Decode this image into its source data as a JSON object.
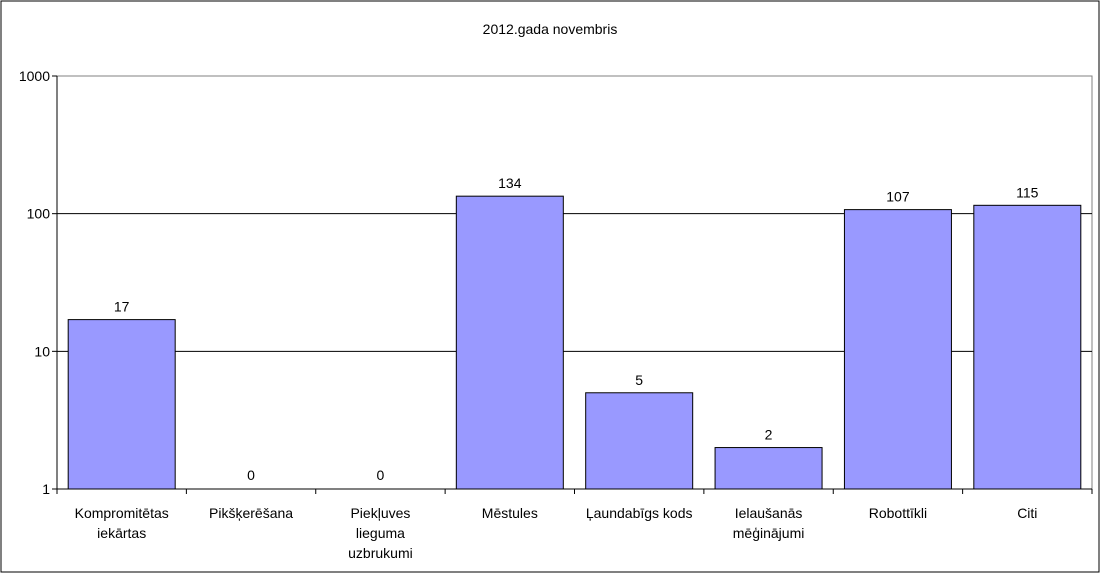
{
  "chart_data": {
    "type": "bar",
    "title": "2012.gada novembris",
    "xlabel": "",
    "ylabel": "",
    "y_scale": "log",
    "ylim": [
      1,
      1000
    ],
    "y_ticks": [
      1,
      10,
      100,
      1000
    ],
    "y_tick_labels": [
      "1",
      "10",
      "100",
      "1000"
    ],
    "grid": true,
    "legend": "none",
    "categories": [
      [
        "Kompromitētas",
        "iekārtas"
      ],
      [
        "Pikšķerēšana"
      ],
      [
        "Piekļuves",
        "lieguma",
        "uzbrukumi"
      ],
      [
        "Mēstules"
      ],
      [
        "Ļaundabīgs kods"
      ],
      [
        "Ielaušanās",
        "mēģinājumi"
      ],
      [
        "Robottīkli"
      ],
      [
        "Citi"
      ]
    ],
    "values": [
      17,
      0,
      0,
      134,
      5,
      2,
      107,
      115
    ],
    "data_labels": [
      "17",
      "0",
      "0",
      "134",
      "5",
      "2",
      "107",
      "115"
    ],
    "colors": {
      "bar_fill": "#9999ff",
      "bar_stroke": "#000000",
      "plot_border": "#808080",
      "gridline": "#000000",
      "frame": "#000000"
    }
  }
}
